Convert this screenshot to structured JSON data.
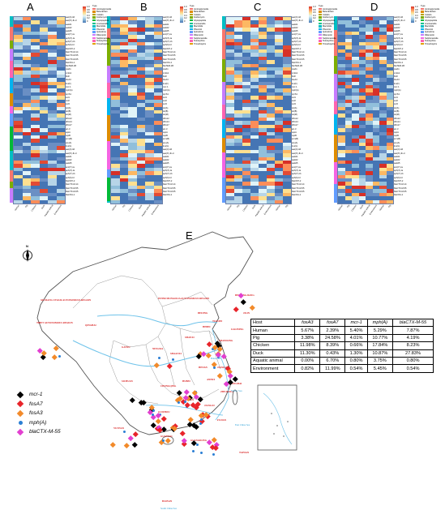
{
  "panels": {
    "a": {
      "letter": "A"
    },
    "b": {
      "letter": "B"
    },
    "c": {
      "letter": "C"
    },
    "d": {
      "letter": "D"
    },
    "e": {
      "letter": "E"
    }
  },
  "heatmap_legend": {
    "type_title": "Type",
    "scale_ticks": [
      "1.0",
      "0.8",
      "0.6",
      "0.4",
      "0.2",
      "0"
    ],
    "types_ab": [
      "Aminoglycoside",
      "Beta-lactam",
      "Colistin",
      "Fosfomycin",
      "Glycopeptide",
      "Lincosamide",
      "Macrolide",
      "Phenicol",
      "Quinolone",
      "Rifampicin",
      "Sulphonamide",
      "Tetracycline",
      "Trimethoprim"
    ],
    "type_colors": [
      "#f8766d",
      "#de8c00",
      "#b79f00",
      "#7cae00",
      "#00ba38",
      "#00c08b",
      "#00bfc4",
      "#00b4f0",
      "#619cff",
      "#c77cff",
      "#f564e3",
      "#ff64b0",
      "#e0a000"
    ],
    "scale_colors": [
      "#d73027",
      "#fc8d59",
      "#fee090",
      "#e0f3f8",
      "#91bfdb",
      "#4575b4"
    ]
  },
  "heatmap_genes": [
    "aac(3)-IId",
    "aac(6')-Ib-cr",
    "aadA1",
    "aadA2",
    "aadA5",
    "ant(2'')-Ia",
    "aph(3')-Ia",
    "aph(3'')-Ib",
    "aph(6)-Id",
    "blaCMY-2",
    "blaCTX-M-14",
    "blaCTX-M-55",
    "blaCTX-M-65",
    "blaOXA-1",
    "blaTEM-1B",
    "catA1",
    "cmlA1",
    "floR",
    "fosA3",
    "lnu(F)",
    "mcr-1",
    "mph(A)",
    "qnrS1",
    "sul1",
    "sul2",
    "sul3",
    "tet(A)",
    "tet(B)",
    "tet(M)",
    "dfrA12",
    "dfrA14",
    "dfrA17",
    "arr-3",
    "oqxA",
    "oqxB",
    "erm(B)",
    "ere(A)",
    "lnu(G)"
  ],
  "heatmap_columns": [
    "Human",
    "Pig",
    "Chicken",
    "Duck",
    "Aquatic animal",
    "Environment"
  ],
  "map_labels_red": [
    "XINJIANG UYGUR AUTONOMOUS REGION",
    "TIBET AUTONOMOUS REGION",
    "QINGHAI",
    "INNER MONGOLIA AUTONOMOUS REGION",
    "HEILONGJIANG",
    "JILIN",
    "LIAONING",
    "HEBEI",
    "SHANXI",
    "SHAANXI",
    "NINGXIA",
    "GANSU",
    "SHANDONG",
    "HENAN",
    "JIANGSU",
    "ANHUI",
    "HUBEI",
    "SICHUAN",
    "CHONGQING",
    "ZHEJIANG",
    "HUNAN",
    "JIANGXI",
    "GUIZHOU",
    "FUJIAN",
    "YUNNAN",
    "GUANGXI",
    "GUANGDONG",
    "HAINAN",
    "TAIWAN",
    "BEIJING",
    "TIANJIN",
    "SHANGHAI"
  ],
  "map_labels_blue": [
    "Bohai Sea",
    "Yellow Sea",
    "East China Sea",
    "South China Sea"
  ],
  "compass": "N",
  "host_table": {
    "headers": [
      "Host",
      "fosA3",
      "fosA7",
      "mcr-1",
      "mph(A)",
      "blaCTX-M-55"
    ],
    "rows": [
      [
        "Human",
        "5.67%",
        "2.39%",
        "5.40%",
        "5.29%",
        "7.87%"
      ],
      [
        "Pig",
        "3.38%",
        "24.58%",
        "4.01%",
        "10.77%",
        "4.19%"
      ],
      [
        "Chicken",
        "11.98%",
        "8.39%",
        "0.66%",
        "17.84%",
        "8.23%"
      ],
      [
        "Duck",
        "11.30%",
        "0.43%",
        "1.30%",
        "10.87%",
        "27.83%"
      ],
      [
        "Aquatic animal",
        "0.00%",
        "6.70%",
        "0.80%",
        "3.75%",
        "0.80%"
      ],
      [
        "Environment",
        "0.82%",
        "11.99%",
        "0.54%",
        "5.45%",
        "0.54%"
      ]
    ]
  },
  "gene_legend": [
    {
      "label": "mcr-1",
      "color": "#000000"
    },
    {
      "label": "fosA7",
      "color": "#e8242a"
    },
    {
      "label": "fosA3",
      "color": "#f28a2a"
    },
    {
      "label": "mph(A)",
      "color": "#2b7fd4"
    },
    {
      "label": "blaCTX-M-55",
      "color": "#e23fd0"
    }
  ]
}
